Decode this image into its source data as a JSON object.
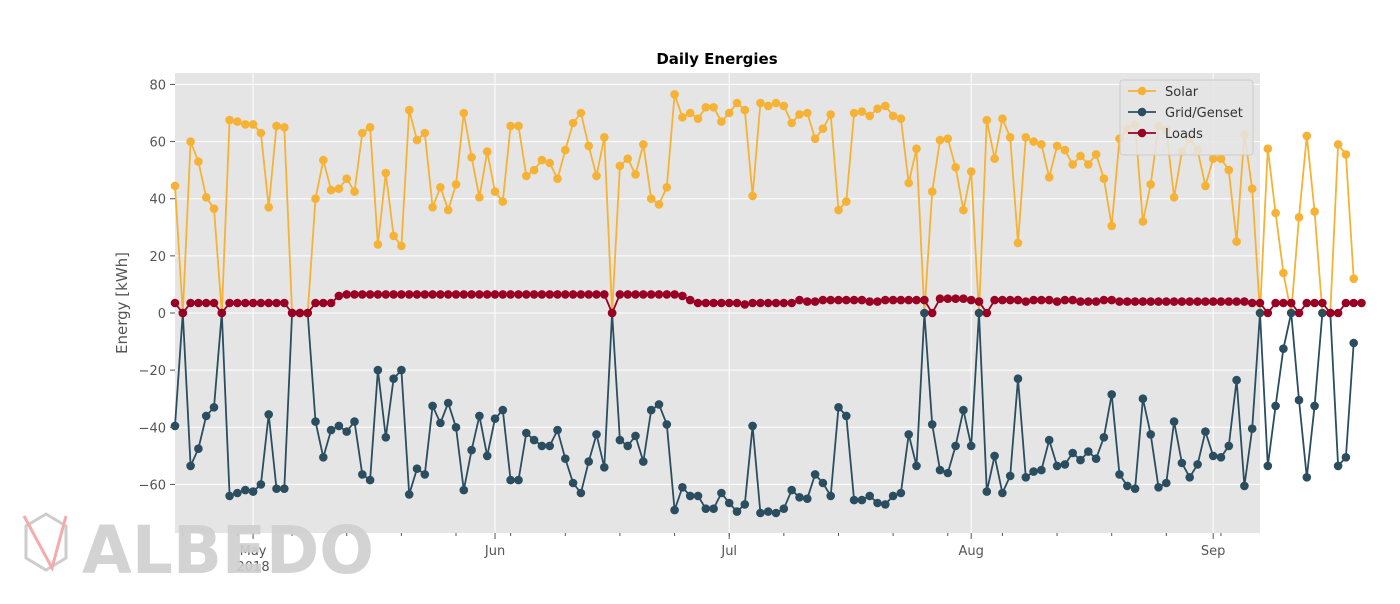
{
  "chart_data": {
    "type": "line",
    "title": "Daily Energies",
    "xlabel": "",
    "ylabel": "Energy [kWh]",
    "ylim": [
      -77,
      84
    ],
    "xlim": [
      "2018-04-21",
      "2018-09-07"
    ],
    "grid": true,
    "legend_position": "top-right",
    "y_ticks": [
      -60,
      -40,
      -20,
      0,
      20,
      40,
      60,
      80
    ],
    "x_ticks": [
      {
        "date": "2018-05-01",
        "label": "May",
        "sublabel": "2018"
      },
      {
        "date": "2018-06-01",
        "label": "Jun",
        "sublabel": ""
      },
      {
        "date": "2018-07-01",
        "label": "Jul",
        "sublabel": ""
      },
      {
        "date": "2018-08-01",
        "label": "Aug",
        "sublabel": ""
      },
      {
        "date": "2018-09-01",
        "label": "Sep",
        "sublabel": ""
      }
    ],
    "x_start": "2018-04-21",
    "series": [
      {
        "name": "Solar",
        "color": "#f5b235",
        "values": [
          44.5,
          0,
          60,
          53,
          40.5,
          36.5,
          0,
          67.5,
          67,
          66,
          66,
          63,
          37,
          65.5,
          65,
          0,
          0,
          0,
          40,
          53.5,
          43,
          43.5,
          47,
          42.5,
          63,
          65,
          24,
          49,
          27,
          23.5,
          71,
          60.5,
          63,
          37,
          44,
          36,
          45,
          70,
          54.5,
          40.5,
          56.5,
          42.5,
          39,
          65.5,
          65.5,
          48,
          50,
          53.5,
          52.5,
          47,
          57,
          66.5,
          70,
          58.5,
          48,
          61.5,
          0,
          51.5,
          54,
          48.5,
          59,
          40,
          38,
          44,
          76.5,
          68.5,
          70,
          68,
          72,
          72,
          67,
          70,
          73.5,
          71,
          41,
          73.5,
          72.5,
          73.5,
          72.5,
          66.5,
          69.5,
          70,
          61,
          64.5,
          69.5,
          36,
          39,
          70,
          70.5,
          69,
          71.5,
          72.5,
          69,
          68,
          45.5,
          57.5,
          0,
          42.5,
          60.5,
          61,
          51,
          36,
          49.5,
          0,
          67.5,
          54,
          68,
          61.5,
          24.5,
          61.5,
          60,
          59,
          47.5,
          58.5,
          57,
          52,
          55,
          52,
          55.5,
          47,
          30.5,
          61,
          64.5,
          66,
          32,
          45,
          65.5,
          64,
          40.5,
          56.5,
          61,
          57,
          44.5,
          54,
          54,
          50,
          25,
          62.5,
          43.5,
          0,
          57.5,
          35,
          14,
          0,
          33.5,
          62,
          35.5,
          0,
          0,
          59,
          55.5,
          12
        ]
      },
      {
        "name": "Grid/Genset",
        "color": "#2a4e60",
        "values": [
          -39.5,
          0,
          -53.5,
          -47.5,
          -36,
          -33,
          0,
          -64,
          -63,
          -62,
          -62.5,
          -60,
          -35.5,
          -61.5,
          -61.5,
          0,
          0,
          0,
          -38,
          -50.5,
          -41,
          -39.5,
          -41.5,
          -38,
          -56.5,
          -58.5,
          -20,
          -43.5,
          -23,
          -20,
          -63.5,
          -54.5,
          -56.5,
          -32.5,
          -38.5,
          -31.5,
          -40,
          -62,
          -48,
          -36,
          -50,
          -37,
          -34,
          -58.5,
          -58.5,
          -42,
          -44.5,
          -46.5,
          -46.5,
          -41,
          -51,
          -59.5,
          -63,
          -52,
          -42.5,
          -54,
          0,
          -44.5,
          -46.5,
          -43,
          -52,
          -34,
          -32,
          -39,
          -69,
          -61,
          -64,
          -64,
          -68.5,
          -68.5,
          -63,
          -66.5,
          -69.5,
          -67,
          -39.5,
          -70,
          -69.5,
          -70,
          -68.5,
          -62,
          -64.5,
          -65,
          -56.5,
          -59.5,
          -64,
          -33,
          -36,
          -65.5,
          -65.5,
          -64,
          -66.5,
          -67,
          -64,
          -63,
          -42.5,
          -53.5,
          0,
          -39,
          -55,
          -56,
          -46.5,
          -34,
          -46.5,
          0,
          -62.5,
          -50,
          -63,
          -57,
          -23,
          -57.5,
          -55.5,
          -55,
          -44.5,
          -53.5,
          -53,
          -49,
          -51.5,
          -48.5,
          -51,
          -43.5,
          -28.5,
          -56.5,
          -60.5,
          -61.5,
          -30,
          -42.5,
          -61,
          -59.5,
          -38,
          -52.5,
          -57.5,
          -53,
          -41.5,
          -50,
          -50.5,
          -46.5,
          -23.5,
          -60.5,
          -40.5,
          0,
          -53.5,
          -32.5,
          -12.5,
          0,
          -30.5,
          -57.5,
          -32.5,
          0,
          0,
          -53.5,
          -50.5,
          -10.5
        ]
      },
      {
        "name": "Loads",
        "color": "#990024",
        "values": [
          3.5,
          0,
          3.5,
          3.5,
          3.5,
          3.5,
          0,
          3.5,
          3.5,
          3.5,
          3.5,
          3.5,
          3.5,
          3.5,
          3.5,
          0,
          0,
          0,
          3.5,
          3.5,
          3.5,
          6,
          6.5,
          6.5,
          6.5,
          6.5,
          6.5,
          6.5,
          6.5,
          6.5,
          6.5,
          6.5,
          6.5,
          6.5,
          6.5,
          6.5,
          6.5,
          6.5,
          6.5,
          6.5,
          6.5,
          6.5,
          6.5,
          6.5,
          6.5,
          6.5,
          6.5,
          6.5,
          6.5,
          6.5,
          6.5,
          6.5,
          6.5,
          6.5,
          6.5,
          6.5,
          0,
          6.5,
          6.5,
          6.5,
          6.5,
          6.5,
          6.5,
          6.5,
          6.5,
          6,
          4.5,
          3.5,
          3.5,
          3.5,
          3.5,
          3.5,
          3.5,
          3,
          3.5,
          3.5,
          3.5,
          3.5,
          3.5,
          3.5,
          4.5,
          4,
          4,
          4.5,
          4.5,
          4.5,
          4.5,
          4.5,
          4.5,
          4,
          4,
          4.5,
          4.5,
          4.5,
          4.5,
          4.5,
          4.5,
          0,
          5,
          5,
          5,
          5,
          4.5,
          4,
          0,
          4.5,
          4.5,
          4.5,
          4.5,
          4,
          4.5,
          4.5,
          4.5,
          4,
          4.5,
          4.5,
          4,
          4,
          4,
          4.5,
          4.5,
          4,
          4,
          4,
          4,
          4,
          4,
          4,
          4,
          4,
          4,
          4,
          4,
          4,
          4,
          4,
          4,
          4,
          3.5,
          3.5,
          0,
          3.5,
          3.5,
          3.5,
          0,
          3.5,
          3.5,
          3.5,
          0,
          0,
          3.5,
          3.5,
          3.5
        ]
      }
    ]
  },
  "watermark": {
    "text": "ALBEDO",
    "color": "#c8c8c8",
    "accent": "#f5a3a3"
  }
}
